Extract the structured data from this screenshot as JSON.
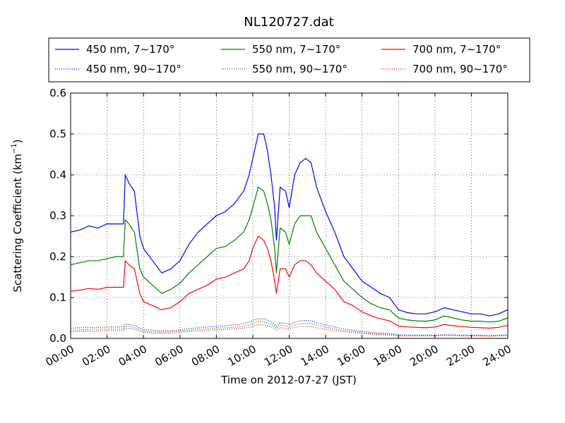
{
  "chart_data": {
    "type": "line",
    "title": "NL120727.dat",
    "xlabel": "Time on 2012-07-27 (JST)",
    "ylabel": "Scattering Coefficient (km",
    "ylabel_sup": "−1",
    "ylabel_close": ")",
    "xlim": [
      0,
      24
    ],
    "ylim": [
      0,
      0.6
    ],
    "grid": true,
    "legend_position": "top",
    "x_ticks": [
      0,
      2,
      4,
      6,
      8,
      10,
      12,
      14,
      16,
      18,
      20,
      22,
      24
    ],
    "x_tick_labels": [
      "00:00",
      "02:00",
      "04:00",
      "06:00",
      "08:00",
      "10:00",
      "12:00",
      "14:00",
      "16:00",
      "18:00",
      "20:00",
      "22:00",
      "24:00"
    ],
    "y_ticks": [
      0,
      0.1,
      0.2,
      0.3,
      0.4,
      0.5,
      0.6
    ],
    "y_tick_labels": [
      "0.0",
      "0.1",
      "0.2",
      "0.3",
      "0.4",
      "0.5",
      "0.6"
    ],
    "x": [
      0,
      0.5,
      1,
      1.5,
      2,
      2.5,
      2.9,
      3.0,
      3.2,
      3.5,
      3.8,
      4.0,
      4.5,
      5.0,
      5.5,
      6.0,
      6.5,
      7.0,
      7.5,
      8.0,
      8.5,
      9.0,
      9.5,
      9.8,
      10.0,
      10.3,
      10.6,
      10.8,
      11.0,
      11.2,
      11.3,
      11.5,
      11.8,
      12.0,
      12.3,
      12.6,
      12.9,
      13.2,
      13.5,
      14.0,
      14.5,
      15.0,
      15.5,
      16.0,
      16.5,
      17.0,
      17.5,
      18.0,
      18.5,
      19.0,
      19.5,
      20.0,
      20.5,
      21.0,
      21.5,
      22.0,
      22.5,
      23.0,
      23.5,
      24.0
    ],
    "series": [
      {
        "name": "450 nm, 7∼170°",
        "color": "#0000ff",
        "style": "solid",
        "values": [
          0.26,
          0.265,
          0.275,
          0.27,
          0.28,
          0.28,
          0.28,
          0.4,
          0.38,
          0.36,
          0.25,
          0.22,
          0.19,
          0.16,
          0.17,
          0.19,
          0.23,
          0.26,
          0.28,
          0.3,
          0.31,
          0.33,
          0.36,
          0.4,
          0.44,
          0.5,
          0.5,
          0.46,
          0.4,
          0.32,
          0.24,
          0.37,
          0.36,
          0.32,
          0.4,
          0.43,
          0.44,
          0.43,
          0.37,
          0.31,
          0.26,
          0.2,
          0.17,
          0.14,
          0.125,
          0.11,
          0.1,
          0.07,
          0.063,
          0.06,
          0.06,
          0.065,
          0.075,
          0.07,
          0.065,
          0.06,
          0.06,
          0.055,
          0.06,
          0.07
        ]
      },
      {
        "name": "550 nm, 7∼170°",
        "color": "#008000",
        "style": "solid",
        "values": [
          0.18,
          0.185,
          0.19,
          0.19,
          0.195,
          0.2,
          0.2,
          0.29,
          0.28,
          0.26,
          0.17,
          0.15,
          0.13,
          0.11,
          0.12,
          0.135,
          0.16,
          0.18,
          0.2,
          0.22,
          0.225,
          0.24,
          0.26,
          0.29,
          0.32,
          0.37,
          0.36,
          0.33,
          0.29,
          0.22,
          0.16,
          0.27,
          0.26,
          0.23,
          0.28,
          0.3,
          0.3,
          0.3,
          0.26,
          0.22,
          0.18,
          0.14,
          0.12,
          0.1,
          0.085,
          0.075,
          0.07,
          0.05,
          0.045,
          0.043,
          0.042,
          0.045,
          0.055,
          0.05,
          0.045,
          0.042,
          0.042,
          0.04,
          0.042,
          0.05
        ]
      },
      {
        "name": "700 nm, 7∼170°",
        "color": "#ff0000",
        "style": "solid",
        "values": [
          0.115,
          0.118,
          0.122,
          0.12,
          0.125,
          0.125,
          0.125,
          0.19,
          0.18,
          0.17,
          0.11,
          0.09,
          0.08,
          0.07,
          0.075,
          0.09,
          0.11,
          0.12,
          0.13,
          0.145,
          0.15,
          0.16,
          0.17,
          0.19,
          0.22,
          0.25,
          0.24,
          0.22,
          0.19,
          0.14,
          0.11,
          0.17,
          0.17,
          0.15,
          0.18,
          0.19,
          0.19,
          0.18,
          0.16,
          0.14,
          0.12,
          0.09,
          0.08,
          0.065,
          0.055,
          0.048,
          0.043,
          0.03,
          0.028,
          0.027,
          0.026,
          0.028,
          0.034,
          0.031,
          0.029,
          0.027,
          0.026,
          0.025,
          0.027,
          0.032
        ]
      },
      {
        "name": "450 nm, 90∼170°",
        "color": "#0000ff",
        "style": "dotted",
        "values": [
          0.025,
          0.026,
          0.027,
          0.027,
          0.028,
          0.028,
          0.028,
          0.035,
          0.034,
          0.032,
          0.025,
          0.022,
          0.02,
          0.018,
          0.019,
          0.021,
          0.024,
          0.026,
          0.028,
          0.03,
          0.031,
          0.033,
          0.036,
          0.04,
          0.044,
          0.048,
          0.048,
          0.045,
          0.04,
          0.035,
          0.03,
          0.038,
          0.037,
          0.034,
          0.04,
          0.043,
          0.044,
          0.043,
          0.038,
          0.033,
          0.028,
          0.023,
          0.02,
          0.017,
          0.015,
          0.013,
          0.012,
          0.009,
          0.008,
          0.008,
          0.008,
          0.008,
          0.009,
          0.009,
          0.008,
          0.008,
          0.008,
          0.007,
          0.008,
          0.009
        ]
      },
      {
        "name": "550 nm, 90∼170°",
        "color": "#008000",
        "style": "dotted",
        "values": [
          0.02,
          0.021,
          0.022,
          0.022,
          0.023,
          0.023,
          0.023,
          0.03,
          0.029,
          0.027,
          0.021,
          0.018,
          0.016,
          0.015,
          0.016,
          0.018,
          0.02,
          0.022,
          0.023,
          0.025,
          0.026,
          0.027,
          0.03,
          0.033,
          0.037,
          0.041,
          0.04,
          0.038,
          0.034,
          0.029,
          0.025,
          0.032,
          0.031,
          0.028,
          0.033,
          0.036,
          0.036,
          0.036,
          0.032,
          0.028,
          0.023,
          0.019,
          0.017,
          0.014,
          0.012,
          0.011,
          0.01,
          0.008,
          0.007,
          0.007,
          0.007,
          0.007,
          0.008,
          0.008,
          0.007,
          0.007,
          0.007,
          0.006,
          0.007,
          0.008
        ]
      },
      {
        "name": "700 nm, 90∼170°",
        "color": "#ff0000",
        "style": "dotted",
        "values": [
          0.016,
          0.017,
          0.018,
          0.018,
          0.019,
          0.019,
          0.019,
          0.025,
          0.024,
          0.023,
          0.017,
          0.015,
          0.013,
          0.012,
          0.013,
          0.015,
          0.017,
          0.018,
          0.019,
          0.021,
          0.022,
          0.023,
          0.025,
          0.027,
          0.03,
          0.034,
          0.033,
          0.031,
          0.028,
          0.024,
          0.02,
          0.026,
          0.025,
          0.023,
          0.027,
          0.029,
          0.029,
          0.029,
          0.026,
          0.023,
          0.019,
          0.016,
          0.014,
          0.012,
          0.01,
          0.009,
          0.008,
          0.006,
          0.006,
          0.006,
          0.006,
          0.006,
          0.007,
          0.007,
          0.006,
          0.006,
          0.006,
          0.005,
          0.006,
          0.007
        ]
      }
    ]
  }
}
